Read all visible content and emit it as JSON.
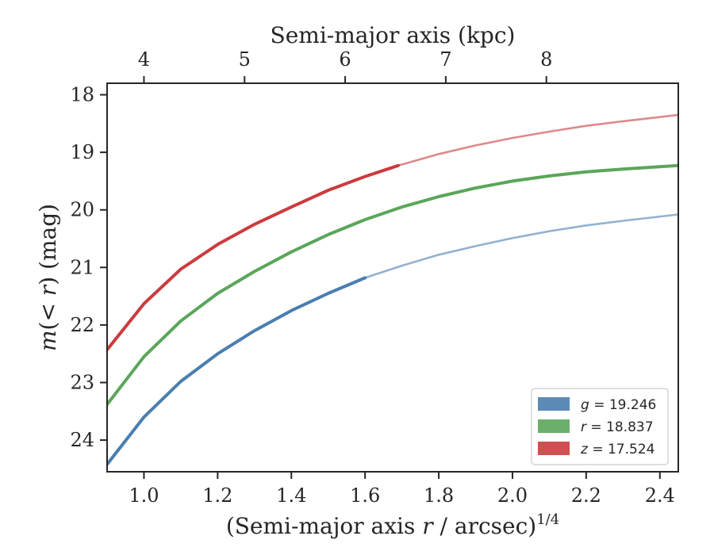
{
  "chart_data": {
    "type": "line",
    "xlabel_bottom": "(Semi-major axis r / arcsec)^1/4",
    "xlabel_top": "Semi-major axis (kpc)",
    "ylabel": "m(< r) (mag)",
    "xlim": [
      0.9,
      2.45
    ],
    "ylim": [
      24.55,
      17.8
    ],
    "y_inverted": true,
    "xticks_bottom": [
      1.0,
      1.2,
      1.4,
      1.6,
      1.8,
      2.0,
      2.2,
      2.4
    ],
    "xtick_labels_bottom": [
      "1.0",
      "1.2",
      "1.4",
      "1.6",
      "1.8",
      "2.0",
      "2.2",
      "2.4"
    ],
    "xticks_top": [
      4,
      5,
      6,
      7,
      8
    ],
    "xticks_top_positions": [
      1.0,
      1.273,
      1.546,
      1.819,
      2.092
    ],
    "yticks": [
      18,
      19,
      20,
      21,
      22,
      23,
      24
    ],
    "legend_position": "lower-right",
    "series": [
      {
        "name": "g = 19.246",
        "legend_var": "g",
        "legend_value": "19.246",
        "color": "#4a7eb0",
        "measured_until_x": 1.6,
        "x": [
          0.9,
          1.0,
          1.1,
          1.2,
          1.3,
          1.4,
          1.5,
          1.6,
          1.7,
          1.8,
          1.9,
          2.0,
          2.1,
          2.2,
          2.3,
          2.45
        ],
        "y": [
          24.42,
          23.6,
          22.98,
          22.5,
          22.1,
          21.75,
          21.45,
          21.18,
          20.97,
          20.78,
          20.63,
          20.49,
          20.37,
          20.27,
          20.19,
          20.08
        ]
      },
      {
        "name": "r = 18.837",
        "legend_var": "r",
        "legend_value": "18.837",
        "color": "#5ba65a",
        "measured_until_x": 2.45,
        "x": [
          0.9,
          1.0,
          1.1,
          1.2,
          1.3,
          1.4,
          1.5,
          1.6,
          1.7,
          1.8,
          1.9,
          2.0,
          2.1,
          2.2,
          2.3,
          2.45
        ],
        "y": [
          23.38,
          22.55,
          21.93,
          21.45,
          21.07,
          20.73,
          20.43,
          20.17,
          19.95,
          19.77,
          19.62,
          19.5,
          19.41,
          19.34,
          19.29,
          19.23
        ]
      },
      {
        "name": "z = 17.524",
        "legend_var": "z",
        "legend_value": "17.524",
        "color": "#cc3b3e",
        "measured_until_x": 1.69,
        "x": [
          0.9,
          1.0,
          1.1,
          1.2,
          1.3,
          1.4,
          1.5,
          1.6,
          1.69,
          1.8,
          1.9,
          2.0,
          2.1,
          2.2,
          2.3,
          2.45
        ],
        "y": [
          22.43,
          21.63,
          21.03,
          20.6,
          20.25,
          19.95,
          19.66,
          19.42,
          19.23,
          19.03,
          18.88,
          18.75,
          18.64,
          18.54,
          18.46,
          18.35
        ]
      }
    ]
  }
}
